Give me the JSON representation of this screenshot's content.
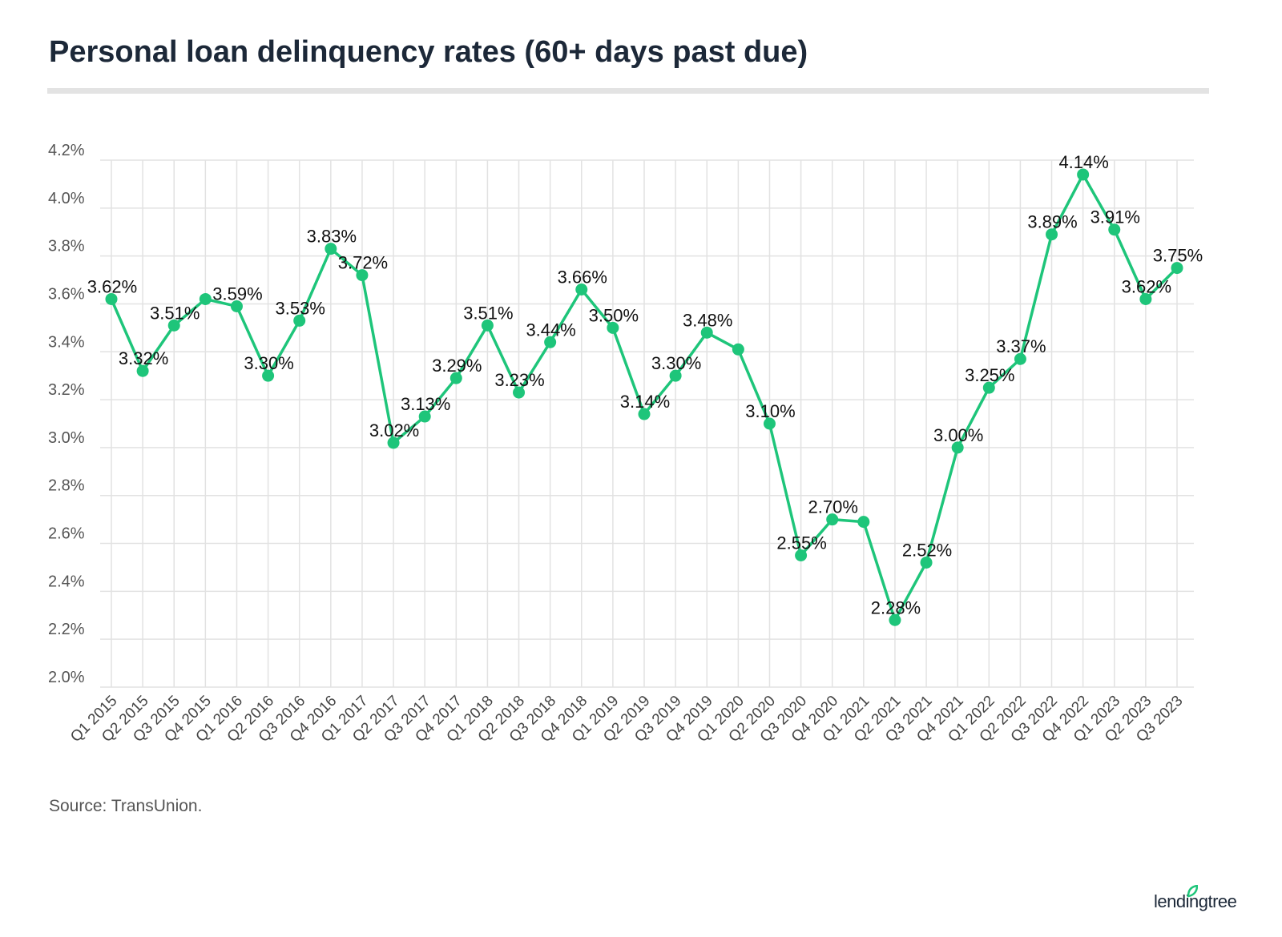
{
  "title": "Personal loan delinquency rates (60+ days past due)",
  "source": "Source: TransUnion.",
  "logo": "lendingtree",
  "colors": {
    "line": "#1ec57a",
    "grid": "#e2e2e2",
    "title": "#1c2838",
    "logo_leaf": "#1ec57a"
  },
  "chart_data": {
    "type": "line",
    "title": "Personal loan delinquency rates (60+ days past due)",
    "xlabel": "",
    "ylabel": "",
    "ylim": [
      2.0,
      4.2
    ],
    "yticks": [
      2.0,
      2.2,
      2.4,
      2.6,
      2.8,
      3.0,
      3.2,
      3.4,
      3.6,
      3.8,
      4.0,
      4.2
    ],
    "ytick_labels": [
      "2.0%",
      "2.2%",
      "2.4%",
      "2.6%",
      "2.8%",
      "3.0%",
      "3.2%",
      "3.4%",
      "3.6%",
      "3.8%",
      "4.0%",
      "4.2%"
    ],
    "grid": true,
    "legend": "none",
    "categories": [
      "Q1 2015",
      "Q2 2015",
      "Q3 2015",
      "Q4 2015",
      "Q1 2016",
      "Q2 2016",
      "Q3 2016",
      "Q4 2016",
      "Q1 2017",
      "Q2 2017",
      "Q3 2017",
      "Q4 2017",
      "Q1 2018",
      "Q2 2018",
      "Q3 2018",
      "Q4 2018",
      "Q1 2019",
      "Q2 2019",
      "Q3 2019",
      "Q4 2019",
      "Q1 2020",
      "Q2 2020",
      "Q3 2020",
      "Q4 2020",
      "Q1 2021",
      "Q2 2021",
      "Q3 2021",
      "Q4 2021",
      "Q1 2022",
      "Q2 2022",
      "Q3 2022",
      "Q4 2022",
      "Q1 2023",
      "Q2 2023",
      "Q3 2023"
    ],
    "series": [
      {
        "name": "Delinquency rate",
        "values": [
          3.62,
          3.32,
          3.51,
          3.62,
          3.59,
          3.3,
          3.53,
          3.83,
          3.72,
          3.02,
          3.13,
          3.29,
          3.51,
          3.23,
          3.44,
          3.66,
          3.5,
          3.14,
          3.3,
          3.48,
          3.41,
          3.1,
          2.55,
          2.7,
          2.69,
          2.28,
          2.52,
          3.0,
          3.25,
          3.37,
          3.89,
          4.14,
          3.91,
          3.62,
          3.75
        ],
        "labels": [
          "3.62%",
          "3.32%",
          "3.51%",
          "",
          "3.59%",
          "3.30%",
          "3.53%",
          "3.83%",
          "3.72%",
          "3.02%",
          "3.13%",
          "3.29%",
          "3.51%",
          "3.23%",
          "3.44%",
          "3.66%",
          "3.50%",
          "3.14%",
          "3.30%",
          "3.48%",
          "",
          "3.10%",
          "2.55%",
          "2.70%",
          "",
          "2.28%",
          "2.52%",
          "3.00%",
          "3.25%",
          "3.37%",
          "3.89%",
          "4.14%",
          "3.91%",
          "3.62%",
          "3.75%"
        ]
      }
    ]
  }
}
